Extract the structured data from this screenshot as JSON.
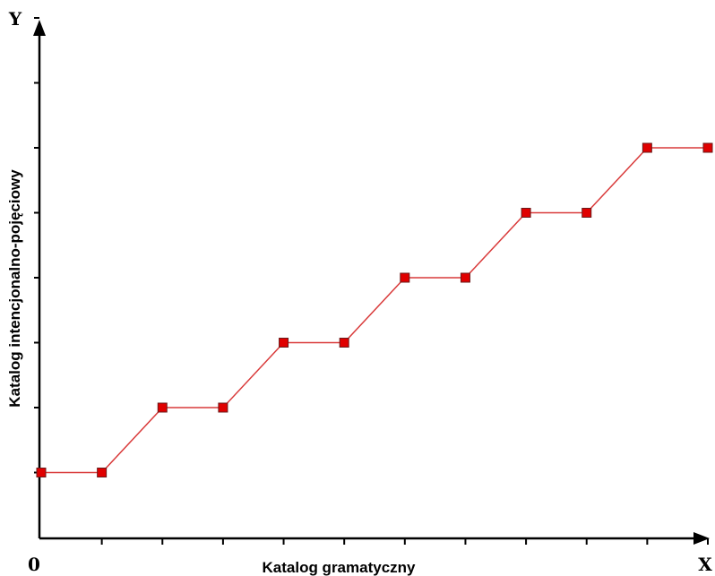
{
  "chart_data": {
    "type": "line",
    "xlabel": "Katalog gramatyczny",
    "ylabel": "Katalog intencjonalno-pojęciowy",
    "x_axis_letter": "X",
    "y_axis_letter": "Y",
    "origin_label": "0",
    "xlim": [
      0,
      11
    ],
    "ylim": [
      0,
      8
    ],
    "x_ticks": [
      0,
      1,
      2,
      3,
      4,
      5,
      6,
      7,
      8,
      9,
      10,
      11
    ],
    "y_ticks": [
      0,
      1,
      2,
      3,
      4,
      5,
      6,
      7,
      8
    ],
    "grid": false,
    "legend": "none",
    "series": [
      {
        "color": "#d93a3a",
        "marker_color": "#e00000",
        "marker": "square",
        "x": [
          0,
          1,
          2,
          3,
          4,
          5,
          6,
          7,
          8,
          9,
          10,
          11
        ],
        "y": [
          1,
          1,
          2,
          2,
          3,
          3,
          4,
          4,
          5,
          5,
          6,
          6
        ]
      }
    ]
  }
}
